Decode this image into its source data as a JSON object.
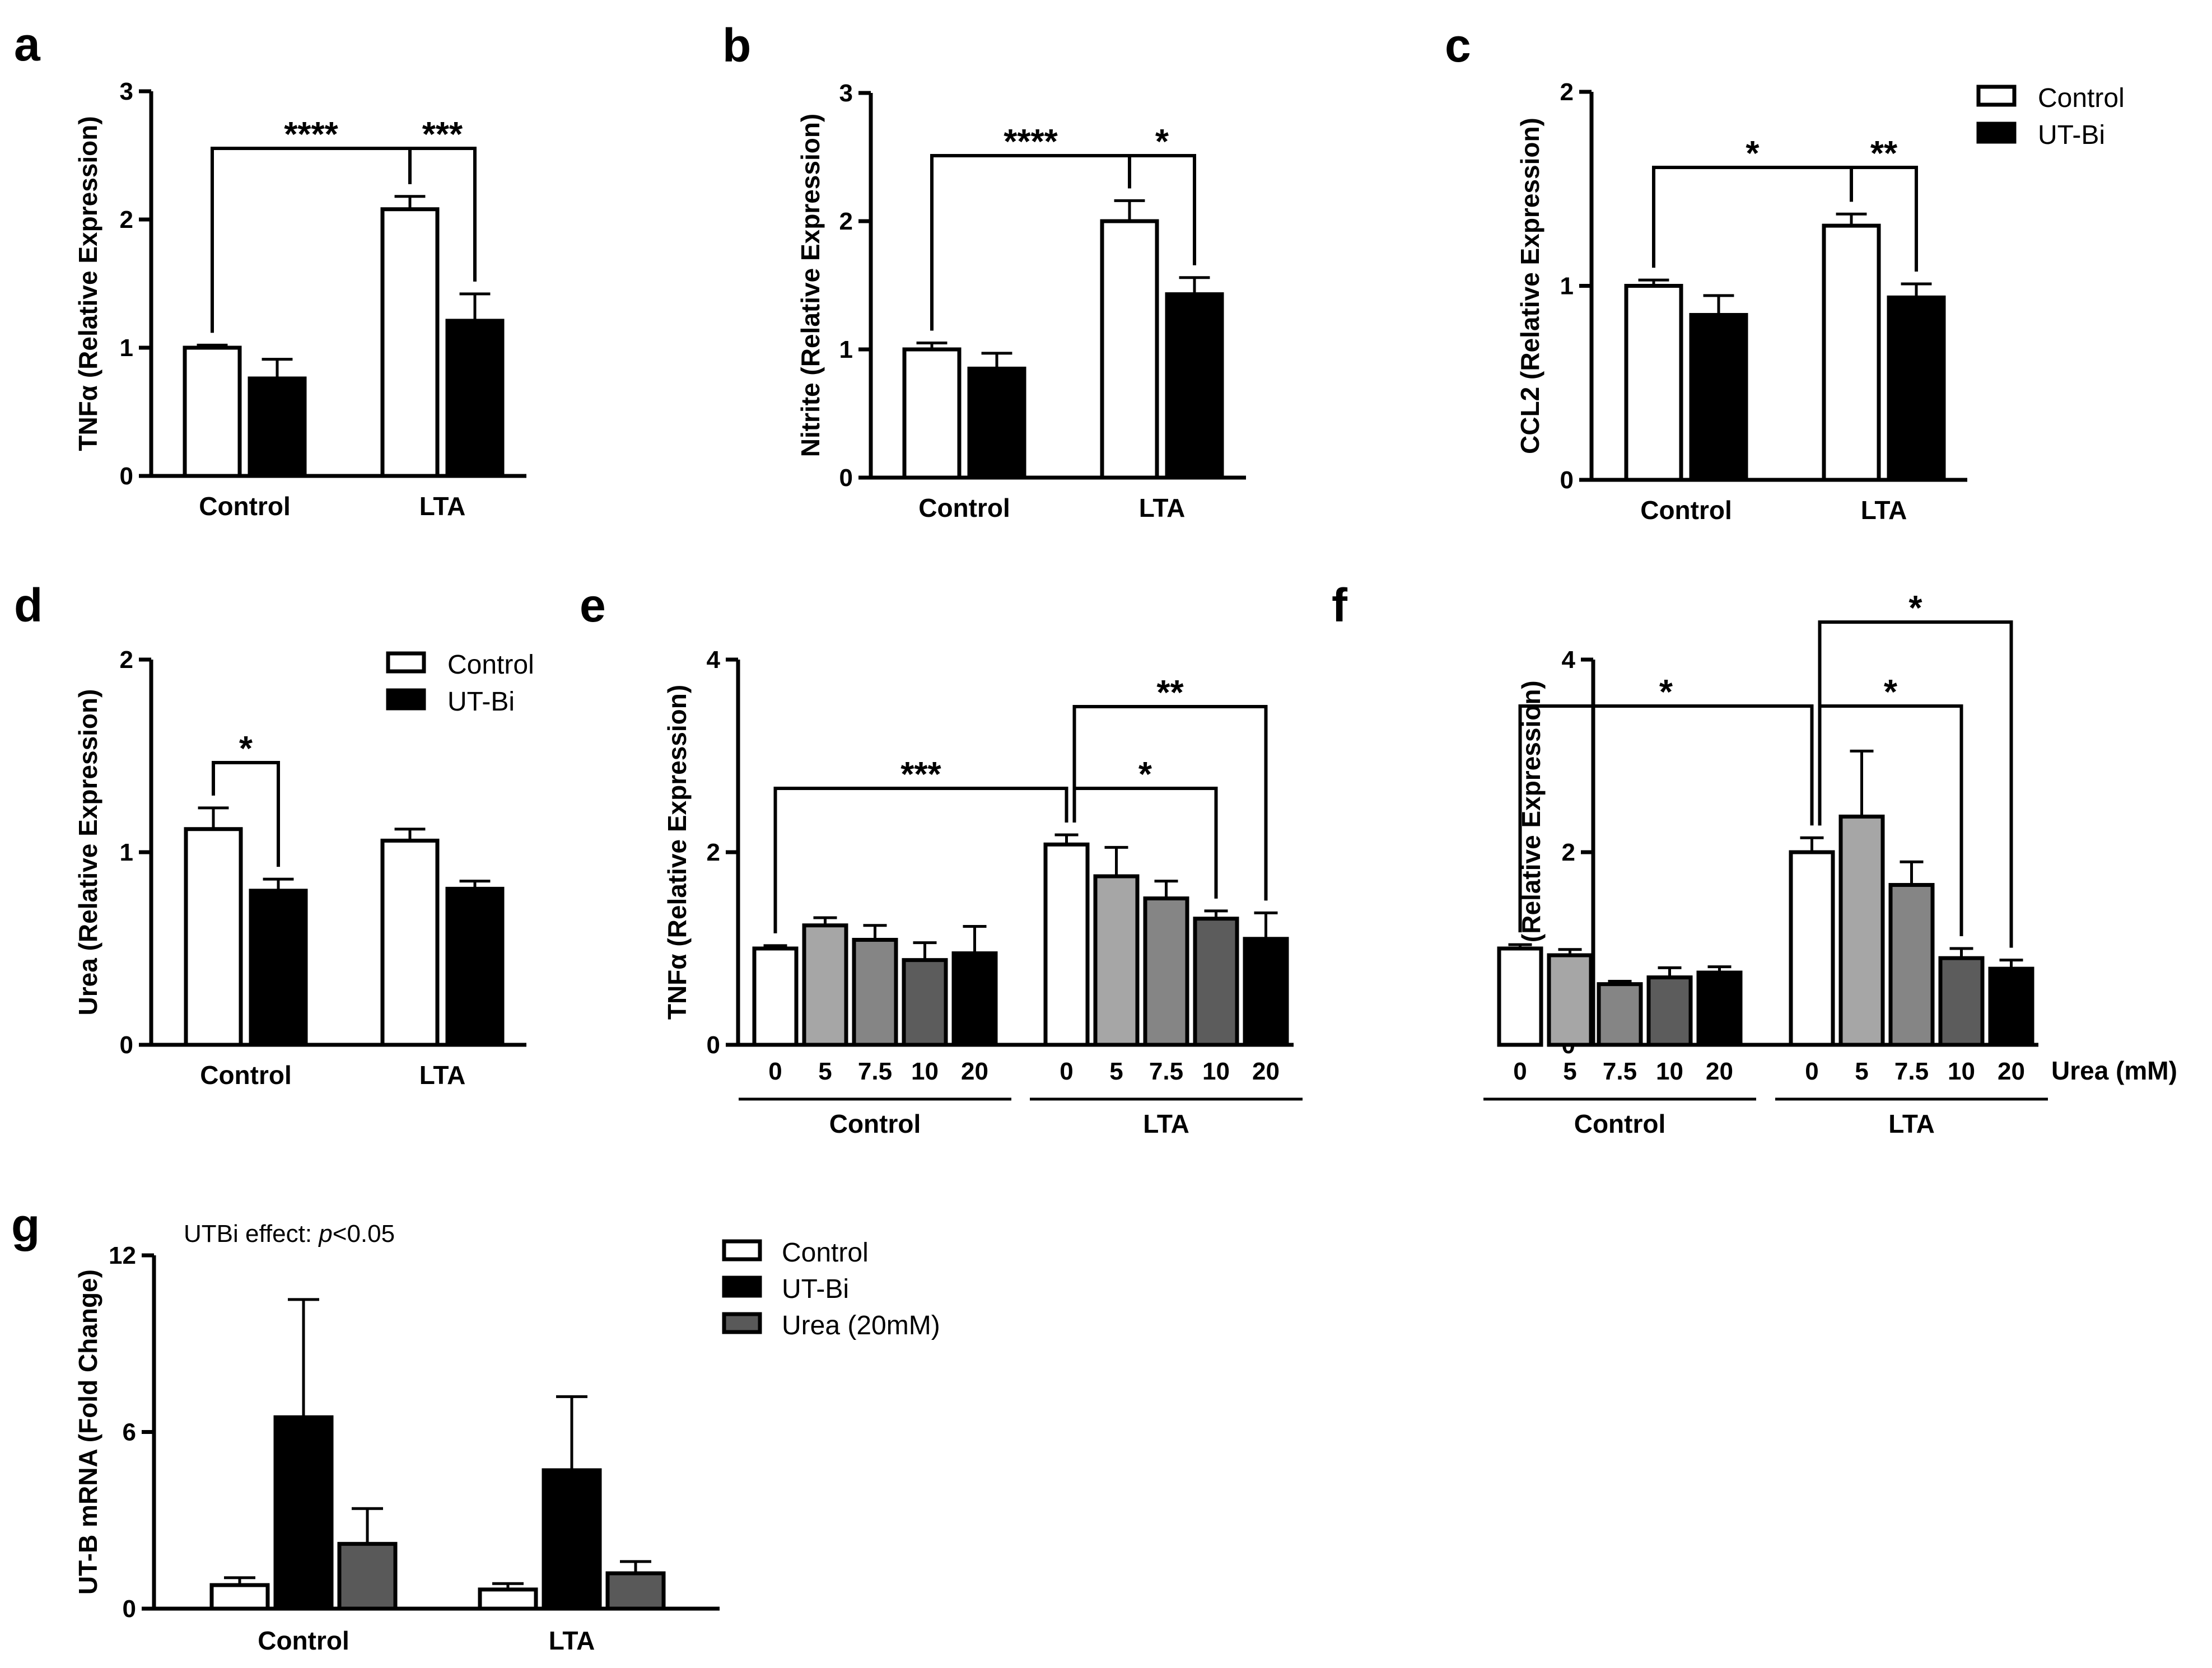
{
  "colors": {
    "control": "#ffffff",
    "utbi": "#000000",
    "gray1": "#a6a6a6",
    "gray2": "#858585",
    "gray3": "#5c5c5c",
    "urea": "#595959",
    "axis": "#000000"
  },
  "chart_data": [
    {
      "panel": "a",
      "type": "bar",
      "ylabel": "TNFα (Relative Expression)",
      "ylim": [
        0,
        3
      ],
      "yticks": [
        "0",
        "1",
        "2",
        "3"
      ],
      "groups": [
        "Control",
        "LTA"
      ],
      "series": [
        {
          "name": "Control",
          "values": [
            1.0,
            2.08
          ],
          "errors": [
            0.02,
            0.1
          ]
        },
        {
          "name": "UT-Bi",
          "values": [
            0.76,
            1.21
          ],
          "errors": [
            0.15,
            0.21
          ]
        }
      ],
      "significance": [
        {
          "from": "Control/Control",
          "to": "LTA/Control",
          "label": "****"
        },
        {
          "from": "LTA/Control",
          "to": "LTA/UT-Bi",
          "label": "***"
        }
      ]
    },
    {
      "panel": "b",
      "type": "bar",
      "ylabel": "Nitrite (Relative Expression)",
      "ylim": [
        0,
        3
      ],
      "yticks": [
        "0",
        "1",
        "2",
        "3"
      ],
      "groups": [
        "Control",
        "LTA"
      ],
      "series": [
        {
          "name": "Control",
          "values": [
            1.0,
            2.0
          ],
          "errors": [
            0.05,
            0.16
          ]
        },
        {
          "name": "UT-Bi",
          "values": [
            0.85,
            1.43
          ],
          "errors": [
            0.12,
            0.13
          ]
        }
      ],
      "significance": [
        {
          "from": "Control/Control",
          "to": "LTA/Control",
          "label": "****"
        },
        {
          "from": "LTA/Control",
          "to": "LTA/UT-Bi",
          "label": "*"
        }
      ]
    },
    {
      "panel": "c",
      "type": "bar",
      "ylabel": "CCL2 (Relative Expression)",
      "ylim": [
        0,
        2
      ],
      "yticks": [
        "0",
        "1",
        "2"
      ],
      "groups": [
        "Control",
        "LTA"
      ],
      "series": [
        {
          "name": "Control",
          "values": [
            1.0,
            1.31
          ],
          "errors": [
            0.03,
            0.06
          ]
        },
        {
          "name": "UT-Bi",
          "values": [
            0.85,
            0.94
          ],
          "errors": [
            0.1,
            0.07
          ]
        }
      ],
      "significance": [
        {
          "from": "Control/Control",
          "to": "LTA/Control",
          "label": "*"
        },
        {
          "from": "LTA/Control",
          "to": "LTA/UT-Bi",
          "label": "**"
        }
      ],
      "legend": [
        "Control",
        "UT-Bi"
      ]
    },
    {
      "panel": "d",
      "type": "bar",
      "ylabel": "Urea (Relative Expression)",
      "ylim": [
        0,
        2
      ],
      "yticks": [
        "0",
        "1",
        "2"
      ],
      "groups": [
        "Control",
        "LTA"
      ],
      "series": [
        {
          "name": "Control",
          "values": [
            1.12,
            1.06
          ],
          "errors": [
            0.11,
            0.06
          ]
        },
        {
          "name": "UT-Bi",
          "values": [
            0.8,
            0.81
          ],
          "errors": [
            0.06,
            0.04
          ]
        }
      ],
      "significance": [
        {
          "from": "Control/Control",
          "to": "Control/UT-Bi",
          "label": "*"
        }
      ],
      "legend": [
        "Control",
        "UT-Bi"
      ]
    },
    {
      "panel": "e",
      "type": "bar",
      "ylabel": "TNFα (Relative Expression)",
      "ylim": [
        0,
        4
      ],
      "yticks": [
        "0",
        "2",
        "4"
      ],
      "groups": [
        "Control",
        "LTA"
      ],
      "urea_mM": [
        "0",
        "5",
        "7.5",
        "10",
        "20"
      ],
      "values": [
        [
          1.0,
          1.24,
          1.09,
          0.88,
          0.95
        ],
        [
          2.08,
          1.75,
          1.52,
          1.31,
          1.1
        ]
      ],
      "errors": [
        [
          0.03,
          0.08,
          0.15,
          0.18,
          0.28
        ],
        [
          0.1,
          0.3,
          0.18,
          0.08,
          0.27
        ]
      ],
      "significance": [
        {
          "from": "Control/0",
          "to": "LTA/0",
          "label": "***"
        },
        {
          "from": "LTA/0",
          "to": "LTA/10",
          "label": "*"
        },
        {
          "from": "LTA/0",
          "to": "LTA/20",
          "label": "**"
        }
      ]
    },
    {
      "panel": "f",
      "type": "bar",
      "ylabel": "Nitrite (Relative Expression)",
      "ylim": [
        0,
        4
      ],
      "yticks": [
        "0",
        "2",
        "4"
      ],
      "groups": [
        "Control",
        "LTA"
      ],
      "urea_mM": [
        "0",
        "5",
        "7.5",
        "10",
        "20"
      ],
      "xlabel": "Urea (mM)",
      "values": [
        [
          1.0,
          0.93,
          0.63,
          0.7,
          0.75
        ],
        [
          2.0,
          2.37,
          1.66,
          0.9,
          0.79
        ]
      ],
      "errors": [
        [
          0.04,
          0.06,
          0.03,
          0.1,
          0.06
        ],
        [
          0.15,
          0.68,
          0.24,
          0.1,
          0.09
        ]
      ],
      "significance": [
        {
          "from": "Control/0",
          "to": "LTA/0",
          "label": "*"
        },
        {
          "from": "LTA/0",
          "to": "LTA/10",
          "label": "*"
        },
        {
          "from": "LTA/0",
          "to": "LTA/20",
          "label": "*"
        }
      ]
    },
    {
      "panel": "g",
      "type": "bar",
      "ylabel": "UT-B mRNA (Fold Change)",
      "ylim": [
        0,
        12
      ],
      "yticks": [
        "0",
        "6",
        "12"
      ],
      "groups": [
        "Control",
        "LTA"
      ],
      "series": [
        {
          "name": "Control",
          "values": [
            0.8,
            0.65
          ],
          "errors": [
            0.25,
            0.2
          ]
        },
        {
          "name": "UT-Bi",
          "values": [
            6.5,
            4.7
          ],
          "errors": [
            4.0,
            2.5
          ]
        },
        {
          "name": "Urea (20mM)",
          "values": [
            2.2,
            1.2
          ],
          "errors": [
            1.2,
            0.4
          ]
        }
      ],
      "annotation_prefix": "UTBi effect: ",
      "annotation_p": "p",
      "annotation_suffix": "<0.05",
      "legend": [
        "Control",
        "UT-Bi",
        "Urea (20mM)"
      ]
    }
  ]
}
